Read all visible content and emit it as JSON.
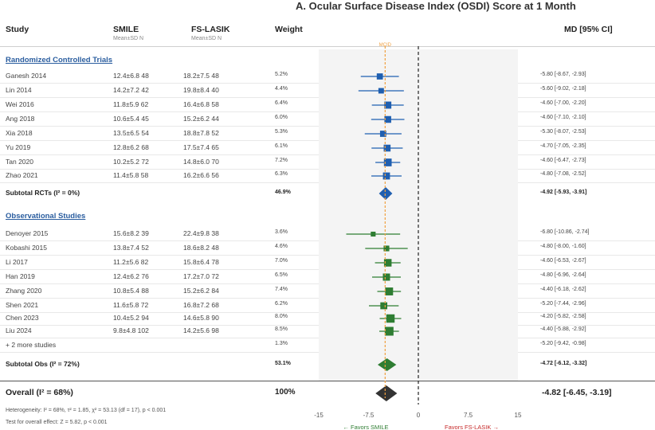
{
  "chart_data": {
    "type": "forest",
    "title": "A. Ocular Surface Disease Index (OSDI) Score at 1 Month",
    "columns": {
      "study": "Study",
      "smile": "SMILE",
      "smile_sub": "Mean±SD N",
      "fslasik": "FS-LASIK",
      "fslasik_sub": "Mean±SD N",
      "weight": "Weight",
      "md": "MD [95% CI]"
    },
    "mcid_label": "MCID",
    "mcid_value": -5,
    "xlim": [
      -15,
      15
    ],
    "x_ticks": [
      -15,
      -7.5,
      0,
      7.5,
      15
    ],
    "x_tick_labels": [
      "-15",
      "-7.5",
      "0",
      "7.5",
      "15"
    ],
    "favors_left": "← Favors SMILE",
    "favors_right": "Favors FS-LASIK →",
    "groups": [
      {
        "name": "Randomized Controlled Trials",
        "color": "#1f5fb0",
        "studies": [
          {
            "study": "Ganesh 2014",
            "smile": "12.4±6.8 48",
            "fslasik": "18.2±7.5 48",
            "weight": "5.2%",
            "md": -5.8,
            "lo": -8.67,
            "hi": -2.93,
            "ci": "-5.80 [-8.67, -2.93]"
          },
          {
            "study": "Lin 2014",
            "smile": "14.2±7.2 42",
            "fslasik": "19.8±8.4 40",
            "weight": "4.4%",
            "md": -5.6,
            "lo": -9.02,
            "hi": -2.18,
            "ci": "-5.60 [-9.02, -2.18]"
          },
          {
            "study": "Wei 2016",
            "smile": "11.8±5.9 62",
            "fslasik": "16.4±6.8 58",
            "weight": "6.4%",
            "md": -4.6,
            "lo": -7.0,
            "hi": -2.2,
            "ci": "-4.60 [-7.00, -2.20]"
          },
          {
            "study": "Ang 2018",
            "smile": "10.6±5.4 45",
            "fslasik": "15.2±6.2 44",
            "weight": "6.0%",
            "md": -4.6,
            "lo": -7.1,
            "hi": -2.1,
            "ci": "-4.60 [-7.10, -2.10]"
          },
          {
            "study": "Xia 2018",
            "smile": "13.5±6.5 54",
            "fslasik": "18.8±7.8 52",
            "weight": "5.3%",
            "md": -5.3,
            "lo": -8.07,
            "hi": -2.53,
            "ci": "-5.30 [-8.07, -2.53]"
          },
          {
            "study": "Yu 2019",
            "smile": "12.8±6.2 68",
            "fslasik": "17.5±7.4 65",
            "weight": "6.1%",
            "md": -4.7,
            "lo": -7.05,
            "hi": -2.35,
            "ci": "-4.70 [-7.05, -2.35]"
          },
          {
            "study": "Tan 2020",
            "smile": "10.2±5.2 72",
            "fslasik": "14.8±6.0 70",
            "weight": "7.2%",
            "md": -4.6,
            "lo": -6.47,
            "hi": -2.73,
            "ci": "-4.60 [-6.47, -2.73]"
          },
          {
            "study": "Zhao 2021",
            "smile": "11.4±5.8 58",
            "fslasik": "16.2±6.6 56",
            "weight": "6.3%",
            "md": -4.8,
            "lo": -7.08,
            "hi": -2.52,
            "ci": "-4.80 [-7.08, -2.52]"
          }
        ],
        "subtotal": {
          "label": "Subtotal RCTs (I² = 0%)",
          "weight": "46.9%",
          "md": -4.92,
          "lo": -5.93,
          "hi": -3.91,
          "ci": "-4.92 [-5.93, -3.91]"
        }
      },
      {
        "name": "Observational Studies",
        "color": "#2e7d32",
        "studies": [
          {
            "study": "Denoyer 2015",
            "smile": "15.6±8.2 39",
            "fslasik": "22.4±9.8 38",
            "weight": "3.6%",
            "md": -6.8,
            "lo": -10.86,
            "hi": -2.74,
            "ci": "-6.80 [-10.86, -2.74]"
          },
          {
            "study": "Kobashi 2015",
            "smile": "13.8±7.4 52",
            "fslasik": "18.6±8.2 48",
            "weight": "4.6%",
            "md": -4.8,
            "lo": -8.0,
            "hi": -1.6,
            "ci": "-4.80 [-8.00, -1.60]"
          },
          {
            "study": "Li 2017",
            "smile": "11.2±5.6 82",
            "fslasik": "15.8±6.4 78",
            "weight": "7.0%",
            "md": -4.6,
            "lo": -6.53,
            "hi": -2.67,
            "ci": "-4.60 [-6.53, -2.67]"
          },
          {
            "study": "Han 2019",
            "smile": "12.4±6.2 76",
            "fslasik": "17.2±7.0 72",
            "weight": "6.5%",
            "md": -4.8,
            "lo": -6.96,
            "hi": -2.64,
            "ci": "-4.80 [-6.96, -2.64]"
          },
          {
            "study": "Zhang 2020",
            "smile": "10.8±5.4 88",
            "fslasik": "15.2±6.2 84",
            "weight": "7.4%",
            "md": -4.4,
            "lo": -6.18,
            "hi": -2.62,
            "ci": "-4.40 [-6.18, -2.62]"
          },
          {
            "study": "Shen 2021",
            "smile": "11.6±5.8 72",
            "fslasik": "16.8±7.2 68",
            "weight": "6.2%",
            "md": -5.2,
            "lo": -7.44,
            "hi": -2.96,
            "ci": "-5.20 [-7.44, -2.96]"
          },
          {
            "study": "Chen 2023",
            "smile": "10.4±5.2 94",
            "fslasik": "14.6±5.8 90",
            "weight": "8.0%",
            "md": -4.2,
            "lo": -5.82,
            "hi": -2.58,
            "ci": "-4.20 [-5.82, -2.58]"
          },
          {
            "study": "Liu 2024",
            "smile": "9.8±4.8 102",
            "fslasik": "14.2±5.6 98",
            "weight": "8.5%",
            "md": -4.4,
            "lo": -5.88,
            "hi": -2.92,
            "ci": "-4.40 [-5.88, -2.92]"
          },
          {
            "study": "+ 2 more studies",
            "smile": "",
            "fslasik": "",
            "weight": "1.3%",
            "md": null,
            "lo": null,
            "hi": null,
            "ci": "-5.20 [-9.42, -0.98]"
          }
        ],
        "subtotal": {
          "label": "Subtotal Obs (I² = 72%)",
          "weight": "53.1%",
          "md": -4.72,
          "lo": -6.12,
          "hi": -3.32,
          "ci": "-4.72 [-6.12, -3.32]"
        }
      }
    ],
    "overall": {
      "label": "Overall (I² = 68%)",
      "weight": "100%",
      "md": -4.82,
      "lo": -6.45,
      "hi": -3.19,
      "ci": "-4.82 [-6.45, -3.19]",
      "color": "#333333"
    },
    "footnotes": [
      "Heterogeneity: I² = 68%, τ² = 1.85, χ² = 53.13 (df = 17), p < 0.001",
      "Test for overall effect: Z = 5.82, p < 0.001"
    ],
    "colors": {
      "left_accent": "#2e7d32",
      "right_accent": "#c62828",
      "mcid_line": "#f0a040",
      "plot_bg": "#f4f4f4"
    }
  }
}
